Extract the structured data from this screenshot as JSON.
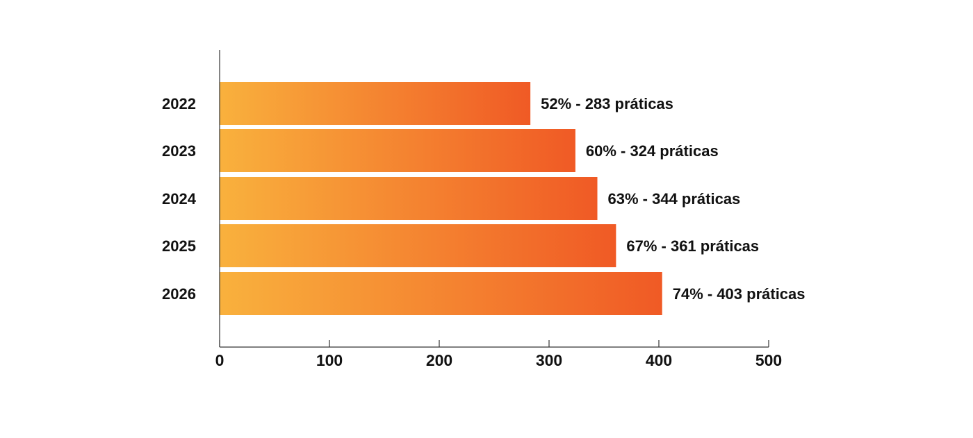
{
  "chart_data": {
    "type": "bar",
    "orientation": "horizontal",
    "categories": [
      "2022",
      "2023",
      "2024",
      "2025",
      "2026"
    ],
    "values": [
      283,
      324,
      344,
      361,
      403
    ],
    "data_labels": [
      "52% - 283 práticas",
      "60% - 324 práticas",
      "63% - 344 práticas",
      "67% - 361 práticas",
      "74% - 403 práticas"
    ],
    "title": "",
    "xlabel": "",
    "ylabel": "",
    "xlim": [
      0,
      500
    ],
    "xticks": [
      "0",
      "100",
      "200",
      "300",
      "400",
      "500"
    ],
    "grid": false,
    "colors": {
      "gradient_start": "#F9B13D",
      "gradient_end": "#F05A25",
      "axis": "#333333"
    }
  }
}
